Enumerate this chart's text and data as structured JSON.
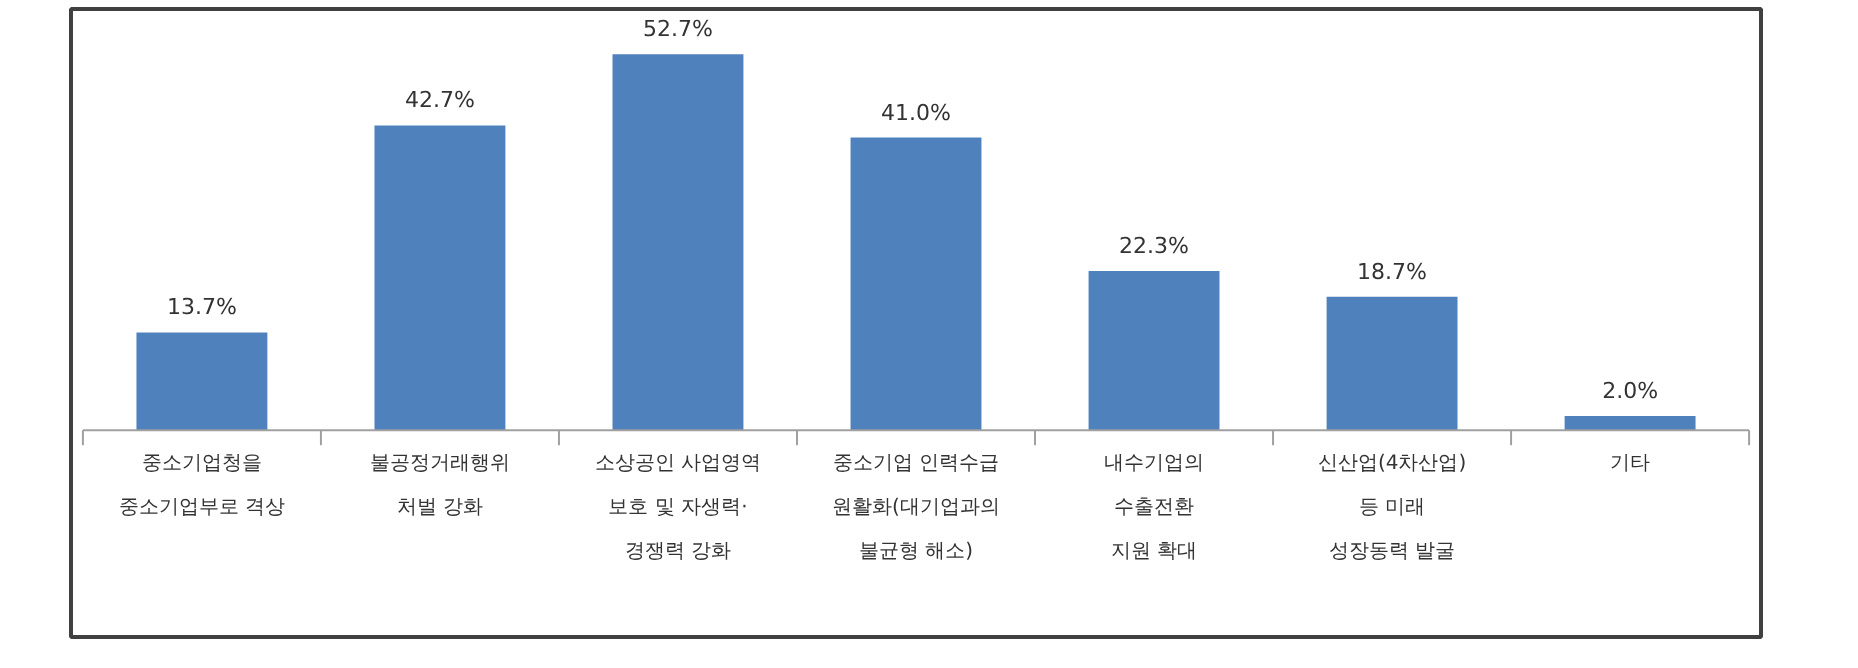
{
  "chart_data": {
    "type": "bar",
    "categories": [
      "중소기업청을\n중소기업부로 격상",
      "불공정거래행위\n처벌 강화",
      "소상공인 사업영역\n보호 및 자생력·\n경쟁력 강화",
      "중소기업 인력수급\n원활화(대기업과의\n불균형 해소)",
      "내수기업의\n수출전환\n지원 확대",
      "신산업(4차산업)\n등 미래\n성장동력 발굴",
      "기타"
    ],
    "values": [
      13.7,
      42.7,
      52.7,
      41.0,
      22.3,
      18.7,
      2.0
    ],
    "value_labels": [
      "13.7%",
      "42.7%",
      "52.7%",
      "41.0%",
      "22.3%",
      "18.7%",
      "2.0%"
    ],
    "color": "#4f81bd",
    "grid": false
  }
}
